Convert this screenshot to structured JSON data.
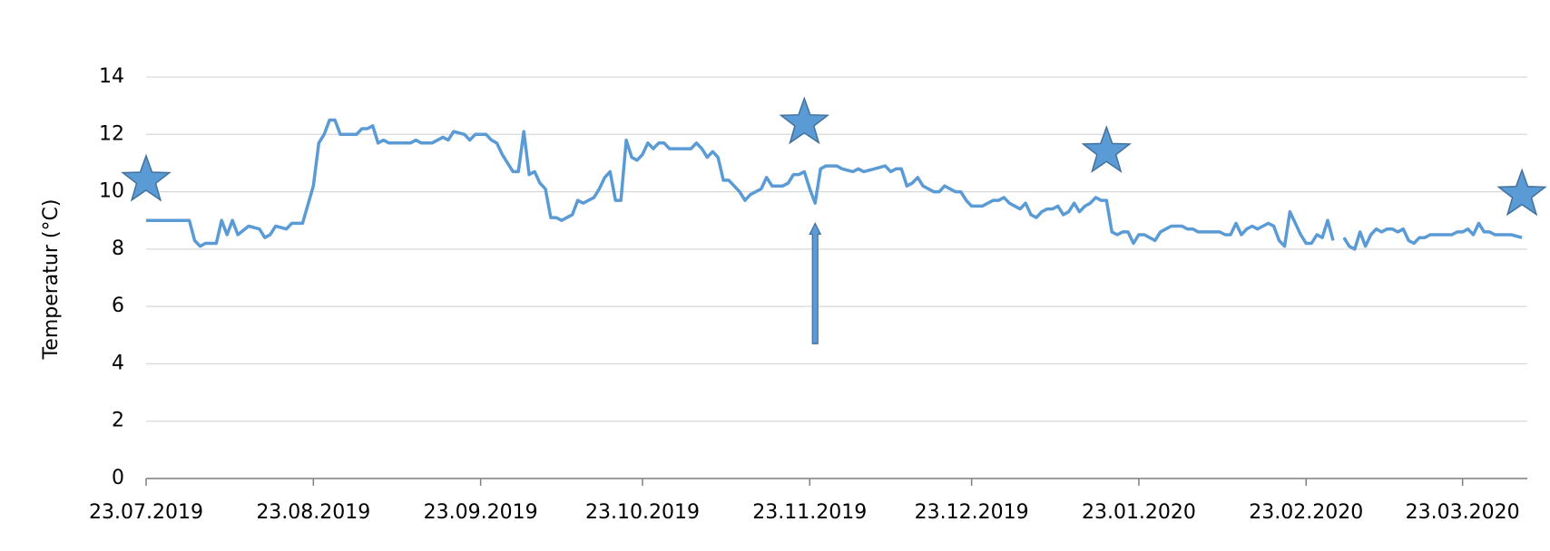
{
  "chart_data": {
    "type": "line",
    "ylabel": "Temperatur (°C)",
    "x": [
      "2019-07-23",
      "2019-07-31",
      "2019-08-01",
      "2019-08-02",
      "2019-08-03",
      "2019-08-05",
      "2019-08-06",
      "2019-08-07",
      "2019-08-08",
      "2019-08-09",
      "2019-08-11",
      "2019-08-13",
      "2019-08-14",
      "2019-08-15",
      "2019-08-16",
      "2019-08-18",
      "2019-08-19",
      "2019-08-21",
      "2019-08-23",
      "2019-08-24",
      "2019-08-25",
      "2019-08-26",
      "2019-08-27",
      "2019-08-28",
      "2019-08-31",
      "2019-09-01",
      "2019-09-02",
      "2019-09-03",
      "2019-09-04",
      "2019-09-05",
      "2019-09-06",
      "2019-09-10",
      "2019-09-11",
      "2019-09-12",
      "2019-09-14",
      "2019-09-16",
      "2019-09-17",
      "2019-09-18",
      "2019-09-20",
      "2019-09-21",
      "2019-09-22",
      "2019-09-24",
      "2019-09-25",
      "2019-09-26",
      "2019-09-27",
      "2019-09-29",
      "2019-09-30",
      "2019-10-01",
      "2019-10-02",
      "2019-10-03",
      "2019-10-04",
      "2019-10-05",
      "2019-10-06",
      "2019-10-07",
      "2019-10-08",
      "2019-10-10",
      "2019-10-11",
      "2019-10-12",
      "2019-10-14",
      "2019-10-15",
      "2019-10-16",
      "2019-10-17",
      "2019-10-18",
      "2019-10-19",
      "2019-10-20",
      "2019-10-21",
      "2019-10-22",
      "2019-10-23",
      "2019-10-24",
      "2019-10-25",
      "2019-10-26",
      "2019-10-27",
      "2019-10-28",
      "2019-11-01",
      "2019-11-02",
      "2019-11-03",
      "2019-11-04",
      "2019-11-05",
      "2019-11-06",
      "2019-11-07",
      "2019-11-08",
      "2019-11-09",
      "2019-11-10",
      "2019-11-11",
      "2019-11-12",
      "2019-11-13",
      "2019-11-14",
      "2019-11-15",
      "2019-11-16",
      "2019-11-18",
      "2019-11-19",
      "2019-11-20",
      "2019-11-21",
      "2019-11-22",
      "2019-11-23",
      "2019-11-24",
      "2019-11-25",
      "2019-11-26",
      "2019-11-28",
      "2019-11-29",
      "2019-12-01",
      "2019-12-02",
      "2019-12-03",
      "2019-12-05",
      "2019-12-07",
      "2019-12-08",
      "2019-12-09",
      "2019-12-10",
      "2019-12-11",
      "2019-12-12",
      "2019-12-13",
      "2019-12-14",
      "2019-12-15",
      "2019-12-16",
      "2019-12-17",
      "2019-12-18",
      "2019-12-19",
      "2019-12-20",
      "2019-12-21",
      "2019-12-22",
      "2019-12-23",
      "2019-12-25",
      "2019-12-26",
      "2019-12-27",
      "2019-12-28",
      "2019-12-29",
      "2019-12-30",
      "2019-12-31",
      "2020-01-01",
      "2020-01-02",
      "2020-01-03",
      "2020-01-04",
      "2020-01-05",
      "2020-01-06",
      "2020-01-07",
      "2020-01-08",
      "2020-01-09",
      "2020-01-10",
      "2020-01-11",
      "2020-01-12",
      "2020-01-13",
      "2020-01-14",
      "2020-01-15",
      "2020-01-16",
      "2020-01-17",
      "2020-01-18",
      "2020-01-19",
      "2020-01-20",
      "2020-01-21",
      "2020-01-22",
      "2020-01-23",
      "2020-01-24",
      "2020-01-25",
      "2020-01-26",
      "2020-01-27",
      "2020-01-28",
      "2020-01-29",
      "2020-01-31",
      "2020-02-01",
      "2020-02-02",
      "2020-02-03",
      "2020-02-07",
      "2020-02-08",
      "2020-02-09",
      "2020-02-10",
      "2020-02-11",
      "2020-02-12",
      "2020-02-13",
      "2020-02-14",
      "2020-02-15",
      "2020-02-16",
      "2020-02-17",
      "2020-02-18",
      "2020-02-19",
      "2020-02-20",
      "2020-02-21",
      "2020-02-22",
      "2020-02-23",
      "2020-02-24",
      "2020-02-25",
      "2020-02-26",
      "2020-02-27",
      "2020-02-28",
      "2020-02-29",
      "2020-03-01",
      "2020-03-02",
      "2020-03-03",
      "2020-03-04",
      "2020-03-05",
      "2020-03-06",
      "2020-03-07",
      "2020-03-08",
      "2020-03-09",
      "2020-03-10",
      "2020-03-11",
      "2020-03-12",
      "2020-03-13",
      "2020-03-14",
      "2020-03-15",
      "2020-03-16",
      "2020-03-17",
      "2020-03-21",
      "2020-03-22",
      "2020-03-23",
      "2020-03-24",
      "2020-03-25",
      "2020-03-26",
      "2020-03-27",
      "2020-03-28",
      "2020-03-29",
      "2020-04-01",
      "2020-04-03"
    ],
    "series": [
      {
        "color": "#5b9bd5",
        "values": [
          9.0,
          9.0,
          8.3,
          8.1,
          8.2,
          8.2,
          9.0,
          8.5,
          9.0,
          8.5,
          8.8,
          8.7,
          8.4,
          8.5,
          8.8,
          8.7,
          8.9,
          8.9,
          10.2,
          11.7,
          12.0,
          12.5,
          12.5,
          12.0,
          12.0,
          12.2,
          12.2,
          12.3,
          11.7,
          11.8,
          11.7,
          11.7,
          11.8,
          11.7,
          11.7,
          11.9,
          11.8,
          12.1,
          12.0,
          11.8,
          12.0,
          12.0,
          11.8,
          11.7,
          11.3,
          10.7,
          10.7,
          12.1,
          10.6,
          10.7,
          10.3,
          10.1,
          9.1,
          9.1,
          9.0,
          9.2,
          9.7,
          9.6,
          9.8,
          10.1,
          10.5,
          10.7,
          9.7,
          9.7,
          11.8,
          11.2,
          11.1,
          11.3,
          11.7,
          11.5,
          11.7,
          11.7,
          11.5,
          11.5,
          11.7,
          11.5,
          11.2,
          11.4,
          11.2,
          10.4,
          10.4,
          10.2,
          10.0,
          9.7,
          9.9,
          10.0,
          10.1,
          10.5,
          10.2,
          10.2,
          10.3,
          10.6,
          10.6,
          10.7,
          10.1,
          9.6,
          10.8,
          10.9,
          10.9,
          10.8,
          10.7,
          10.8,
          10.7,
          10.8,
          10.9,
          10.7,
          10.8,
          10.8,
          10.2,
          10.3,
          10.5,
          10.2,
          10.1,
          10.0,
          10.0,
          10.2,
          10.1,
          10.0,
          10.0,
          9.7,
          9.5,
          9.5,
          9.6,
          9.7,
          9.7,
          9.8,
          9.6,
          9.5,
          9.4,
          9.6,
          9.2,
          9.1,
          9.3,
          9.4,
          9.4,
          9.5,
          9.2,
          9.3,
          9.6,
          9.3,
          9.5,
          9.6,
          9.8,
          9.7,
          9.7,
          8.6,
          8.5,
          8.6,
          8.6,
          8.2,
          8.5,
          8.5,
          8.4,
          8.3,
          8.6,
          8.7,
          8.8,
          8.8,
          8.7,
          8.7,
          8.6,
          8.6,
          8.5,
          8.5,
          8.9,
          8.5,
          8.7,
          8.8,
          8.7,
          8.8,
          8.9,
          8.8,
          8.3,
          8.1,
          9.3,
          8.9,
          8.5,
          8.2,
          8.2,
          8.5,
          8.4,
          9.0,
          8.3,
          null,
          8.4,
          8.1,
          8.0,
          8.6,
          8.1,
          8.5,
          8.7,
          8.6,
          8.7,
          8.7,
          8.6,
          8.7,
          8.3,
          8.2,
          8.4,
          8.4,
          8.5,
          8.5,
          8.6,
          8.6,
          8.7,
          8.5,
          8.9,
          8.6,
          8.6,
          8.5,
          8.5,
          8.4
        ]
      }
    ],
    "markers": [
      {
        "x": "2019-07-23",
        "y": 10.4
      },
      {
        "x": "2019-11-22",
        "y": 12.4
      },
      {
        "x": "2020-01-17",
        "y": 11.4
      },
      {
        "x": "2020-04-03",
        "y": 9.9
      }
    ],
    "arrow": {
      "x": "2019-11-24",
      "from": 4.7,
      "to": 8.9
    },
    "xlim": [
      "2019-07-23",
      "2020-04-04"
    ],
    "xticks": [
      {
        "value": "2019-07-23",
        "label": "23.07.2019"
      },
      {
        "value": "2019-08-23",
        "label": "23.08.2019"
      },
      {
        "value": "2019-09-23",
        "label": "23.09.2019"
      },
      {
        "value": "2019-10-23",
        "label": "23.10.2019"
      },
      {
        "value": "2019-11-23",
        "label": "23.11.2019"
      },
      {
        "value": "2019-12-23",
        "label": "23.12.2019"
      },
      {
        "value": "2020-01-23",
        "label": "23.01.2020"
      },
      {
        "value": "2020-02-23",
        "label": "23.02.2020"
      },
      {
        "value": "2020-03-23",
        "label": "23.03.2020"
      }
    ],
    "ylim": [
      0,
      14
    ],
    "yticks": [
      0,
      2,
      4,
      6,
      8,
      10,
      12,
      14
    ],
    "grid": true
  }
}
